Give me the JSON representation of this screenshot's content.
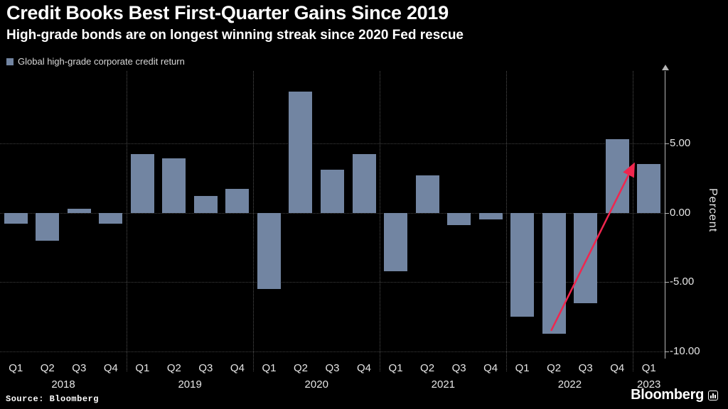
{
  "header": {
    "title": "Credit Books Best First-Quarter Gains Since 2019",
    "subtitle": "High-grade bonds are on longest winning streak since 2020 Fed rescue"
  },
  "legend": {
    "label": "Global high-grade corporate credit return",
    "swatch_color": "#7285a2"
  },
  "chart_data": {
    "type": "bar",
    "title": "Credit Books Best First-Quarter Gains Since 2019",
    "subtitle": "High-grade bonds are on longest winning streak since 2020 Fed rescue",
    "series_name": "Global high-grade corporate credit return",
    "categories": [
      "Q1 2018",
      "Q2 2018",
      "Q3 2018",
      "Q4 2018",
      "Q1 2019",
      "Q2 2019",
      "Q3 2019",
      "Q4 2019",
      "Q1 2020",
      "Q2 2020",
      "Q3 2020",
      "Q4 2020",
      "Q1 2021",
      "Q2 2021",
      "Q3 2021",
      "Q4 2021",
      "Q1 2022",
      "Q2 2022",
      "Q3 2022",
      "Q4 2022",
      "Q1 2023"
    ],
    "x_tick_labels": [
      "Q1",
      "Q2",
      "Q3",
      "Q4",
      "Q1",
      "Q2",
      "Q3",
      "Q4",
      "Q1",
      "Q2",
      "Q3",
      "Q4",
      "Q1",
      "Q2",
      "Q3",
      "Q4",
      "Q1",
      "Q2",
      "Q3",
      "Q4",
      "Q1"
    ],
    "year_groups": [
      {
        "label": "2018",
        "count": 4
      },
      {
        "label": "2019",
        "count": 4
      },
      {
        "label": "2020",
        "count": 4
      },
      {
        "label": "2021",
        "count": 4
      },
      {
        "label": "2022",
        "count": 4
      },
      {
        "label": "2023",
        "count": 1
      }
    ],
    "values": [
      -0.8,
      -2.0,
      0.3,
      -0.8,
      4.2,
      3.9,
      1.2,
      1.7,
      -5.5,
      8.7,
      3.1,
      4.2,
      -4.2,
      2.7,
      -0.9,
      -0.5,
      -7.5,
      -8.7,
      -6.5,
      5.3,
      3.5
    ],
    "xlabel": "",
    "ylabel": "Percent",
    "ylim": [
      -10.5,
      10.2
    ],
    "yticks": [
      5,
      0,
      -5,
      -10
    ],
    "ytick_labels": [
      "5.00",
      "0.00",
      "-5.00",
      "-10.00"
    ],
    "bar_color": "#7285a2",
    "grid": "dotted",
    "legend_position": "top-left",
    "annotation": {
      "type": "arrow",
      "from": {
        "category": "Q2 2022",
        "value": -8.5
      },
      "to": {
        "category": "Q1 2023",
        "value": 3.4
      },
      "color": "#f0264e"
    }
  },
  "footer": {
    "source": "Source: Bloomberg",
    "brand": "Bloomberg"
  }
}
